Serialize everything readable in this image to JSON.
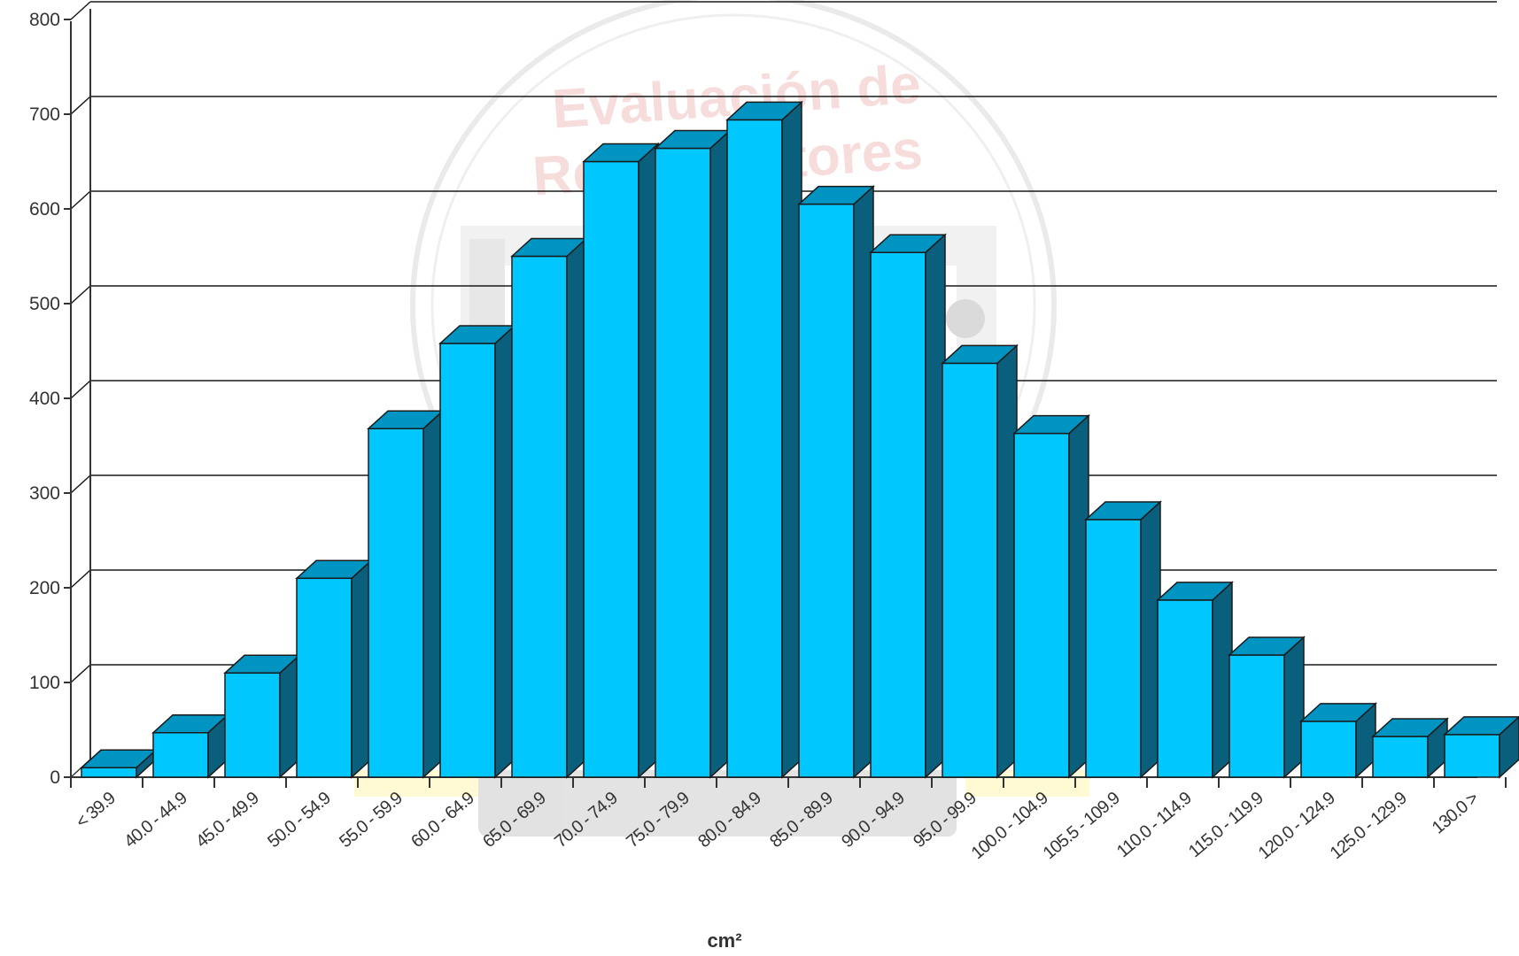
{
  "chart_data": {
    "type": "bar",
    "style": "3d",
    "categories": [
      "< 39.9",
      "40.0 - 44.9",
      "45.0 - 49.9",
      "50.0 - 54.9",
      "55.0 - 59.9",
      "60.0 - 64.9",
      "65.0 - 69.9",
      "70.0 - 74.9",
      "75.0 - 79.9",
      "80.0 - 84.9",
      "85.0 - 89.9",
      "90.0 - 94.9",
      "95.0 - 99.9",
      "100.0 - 104.9",
      "105.5 - 109.9",
      "110.0 - 114.9",
      "115.0 - 119.9",
      "120.0 - 124.9",
      "125.0 - 129.9",
      "130.0 >"
    ],
    "values": [
      10,
      47,
      110,
      210,
      368,
      458,
      550,
      650,
      664,
      694,
      605,
      554,
      437,
      363,
      272,
      187,
      129,
      59,
      43,
      45
    ],
    "title": "",
    "xlabel": "cm²",
    "ylabel": "",
    "ylim": [
      0,
      800
    ],
    "yticks": [
      0,
      100,
      200,
      300,
      400,
      500,
      600,
      700,
      800
    ],
    "grid": true,
    "legend": "none",
    "colors": {
      "bar_front": "#00c8ff",
      "bar_side": "#0a5f7c",
      "bar_top": "#0094c2",
      "grid": "#1a1a1a",
      "watermark": "#f0b4b4"
    }
  },
  "watermark": {
    "line1": "Evaluación de",
    "line2": "Reproductores"
  }
}
